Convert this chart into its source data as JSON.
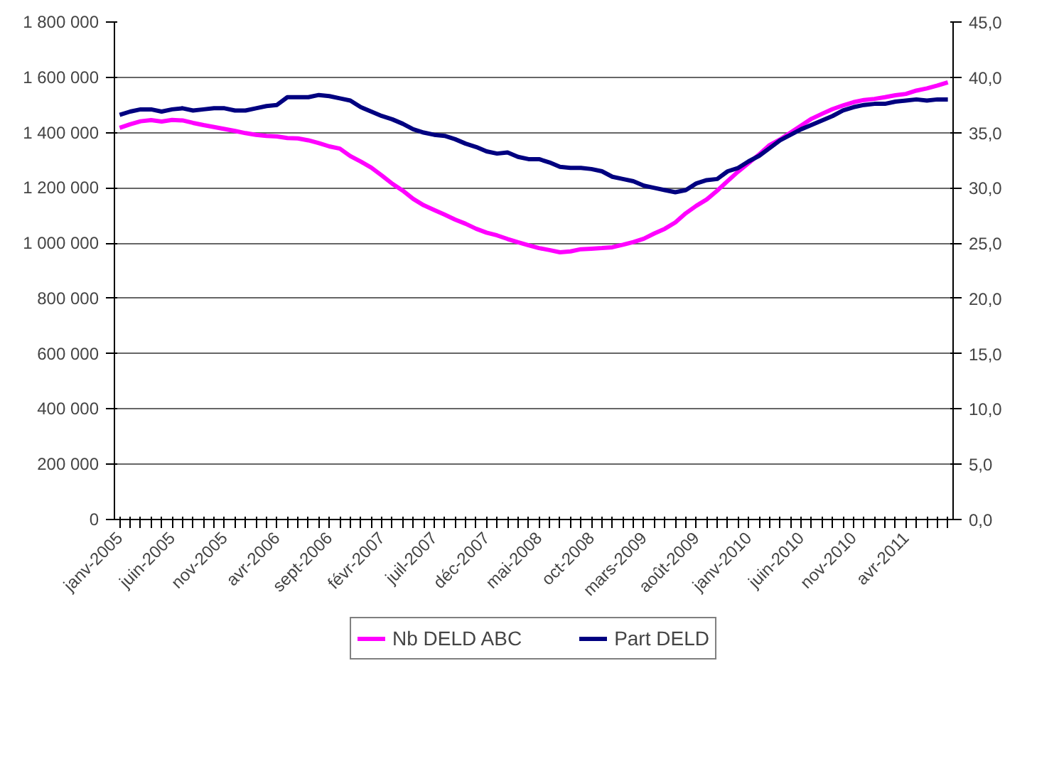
{
  "chart_data": {
    "type": "line",
    "categories": [
      "janv-2005",
      null,
      null,
      null,
      null,
      "juin-2005",
      null,
      null,
      null,
      null,
      "nov-2005",
      null,
      null,
      null,
      null,
      "avr-2006",
      null,
      null,
      null,
      null,
      "sept-2006",
      null,
      null,
      null,
      null,
      "févr-2007",
      null,
      null,
      null,
      null,
      "juil-2007",
      null,
      null,
      null,
      null,
      "déc-2007",
      null,
      null,
      null,
      null,
      "mai-2008",
      null,
      null,
      null,
      null,
      "oct-2008",
      null,
      null,
      null,
      null,
      "mars-2009",
      null,
      null,
      null,
      null,
      "août-2009",
      null,
      null,
      null,
      null,
      "janv-2010",
      null,
      null,
      null,
      null,
      "juin-2010",
      null,
      null,
      null,
      null,
      "nov-2010",
      null,
      null,
      null,
      null,
      "avr-2011",
      null,
      null,
      null,
      null
    ],
    "series": [
      {
        "name": "Nb DELD ABC",
        "color": "#ff00ff",
        "values": [
          1417000,
          1430000,
          1441000,
          1445000,
          1440000,
          1446000,
          1444000,
          1435000,
          1427000,
          1420000,
          1413000,
          1406000,
          1398000,
          1392000,
          1388000,
          1386000,
          1380000,
          1379000,
          1372000,
          1362000,
          1350000,
          1342000,
          1315000,
          1295000,
          1273000,
          1245000,
          1215000,
          1190000,
          1160000,
          1137000,
          1120000,
          1103000,
          1085000,
          1070000,
          1052000,
          1038000,
          1028000,
          1015000,
          1003000,
          992000,
          982000,
          975000,
          967000,
          970000,
          978000,
          980000,
          982000,
          985000,
          994000,
          1004000,
          1016000,
          1035000,
          1052000,
          1075000,
          1108000,
          1135000,
          1158000,
          1190000,
          1225000,
          1259000,
          1290000,
          1321000,
          1355000,
          1375000,
          1400000,
          1425000,
          1450000,
          1468000,
          1485000,
          1498000,
          1510000,
          1518000,
          1522000,
          1528000,
          1535000,
          1540000,
          1552000,
          1560000,
          1570000,
          1582000
        ]
      },
      {
        "name": "Part DELD",
        "color": "#000080",
        "axis": "y2",
        "values": [
          36.6,
          36.9,
          37.1,
          37.1,
          36.9,
          37.1,
          37.2,
          37.0,
          37.1,
          37.2,
          37.2,
          37.0,
          37.0,
          37.2,
          37.4,
          37.5,
          38.2,
          38.2,
          38.2,
          38.4,
          38.3,
          38.1,
          37.9,
          37.3,
          36.9,
          36.5,
          36.2,
          35.8,
          35.3,
          35.0,
          34.8,
          34.7,
          34.4,
          34.0,
          33.7,
          33.3,
          33.1,
          33.2,
          32.8,
          32.6,
          32.6,
          32.3,
          31.9,
          31.8,
          31.8,
          31.7,
          31.5,
          31.0,
          30.8,
          30.6,
          30.2,
          30.0,
          29.8,
          29.6,
          29.8,
          30.4,
          30.7,
          30.8,
          31.5,
          31.8,
          32.4,
          32.9,
          33.6,
          34.3,
          34.8,
          35.3,
          35.7,
          36.1,
          36.5,
          37.0,
          37.3,
          37.5,
          37.6,
          37.6,
          37.8,
          37.9,
          38.0,
          37.9,
          38.0,
          38.0
        ]
      }
    ],
    "ylim": [
      0,
      1800000
    ],
    "yticks": [
      {
        "value": 0,
        "label": "0"
      },
      {
        "value": 200000,
        "label": "200 000"
      },
      {
        "value": 400000,
        "label": "400 000"
      },
      {
        "value": 600000,
        "label": "600 000"
      },
      {
        "value": 800000,
        "label": "800 000"
      },
      {
        "value": 1000000,
        "label": "1 000 000"
      },
      {
        "value": 1200000,
        "label": "1 200 000"
      },
      {
        "value": 1400000,
        "label": "1 400 000"
      },
      {
        "value": 1600000,
        "label": "1 600 000"
      },
      {
        "value": 1800000,
        "label": "1 800 000"
      }
    ],
    "y2lim": [
      0,
      45
    ],
    "y2ticks": [
      {
        "value": 0,
        "label": "0,0"
      },
      {
        "value": 5,
        "label": "5,0"
      },
      {
        "value": 10,
        "label": "10,0"
      },
      {
        "value": 15,
        "label": "15,0"
      },
      {
        "value": 20,
        "label": "20,0"
      },
      {
        "value": 25,
        "label": "25,0"
      },
      {
        "value": 30,
        "label": "30,0"
      },
      {
        "value": 35,
        "label": "35,0"
      },
      {
        "value": 40,
        "label": "40,0"
      },
      {
        "value": 45,
        "label": "45,0"
      }
    ],
    "grid": "y",
    "legend": "bottom"
  }
}
